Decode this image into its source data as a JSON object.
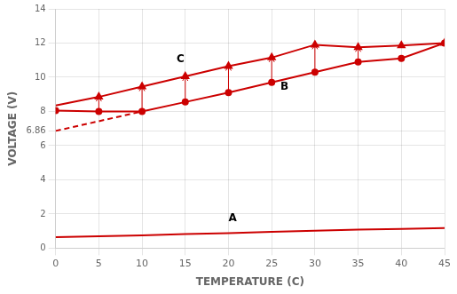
{
  "chart_data": {
    "type": "line",
    "xlabel": "TEMPERATURE (C)",
    "ylabel": "VOLTAGE (V)",
    "xlim": [
      0,
      45
    ],
    "ylim": [
      0,
      14
    ],
    "xticks": [
      0,
      5,
      10,
      15,
      20,
      25,
      30,
      35,
      40,
      45
    ],
    "yticks": [
      0,
      2,
      4,
      6,
      6.86,
      8,
      10,
      12,
      14
    ],
    "grid": true,
    "color": "#cc0000",
    "series": [
      {
        "x": [
          0,
          5,
          10,
          15,
          20,
          25,
          30,
          35,
          40,
          45
        ],
        "values": [
          0.65,
          0.7,
          0.75,
          0.82,
          0.88,
          0.95,
          1.02,
          1.08,
          1.13,
          1.18
        ]
      },
      {
        "x": [
          0,
          5,
          10,
          15,
          20,
          25,
          30,
          35,
          40,
          45
        ],
        "values": [
          8.05,
          8.0,
          8.0,
          8.55,
          9.1,
          9.7,
          10.3,
          10.9,
          11.1,
          12.0
        ],
        "marker": "circle"
      },
      {
        "x": [
          0,
          5,
          10,
          15,
          20,
          25,
          30,
          35,
          40,
          45
        ],
        "values": [
          8.35,
          8.85,
          9.45,
          10.05,
          10.65,
          11.15,
          11.9,
          11.75,
          11.85,
          12.0
        ]
      },
      {
        "x": [
          5,
          10,
          15,
          20,
          25,
          30,
          35,
          40,
          45
        ],
        "values": [
          8.85,
          9.45,
          10.05,
          10.65,
          11.15,
          11.9,
          11.75,
          11.85,
          12.0
        ],
        "type": "scatter",
        "marker": "triangle"
      },
      {
        "x": [
          0,
          10
        ],
        "values": [
          6.86,
          8.0
        ],
        "line_style": "dashed"
      }
    ],
    "arrows": [
      {
        "x": 5,
        "y_bottom": 8.0,
        "y_top": 8.85
      },
      {
        "x": 10,
        "y_bottom": 8.0,
        "y_top": 9.45
      },
      {
        "x": 15,
        "y_bottom": 8.55,
        "y_top": 10.05
      },
      {
        "x": 20,
        "y_bottom": 9.1,
        "y_top": 10.65
      },
      {
        "x": 25,
        "y_bottom": 9.7,
        "y_top": 11.15
      },
      {
        "x": 30,
        "y_bottom": 10.3,
        "y_top": 11.9
      },
      {
        "x": 35,
        "y_bottom": 10.9,
        "y_top": 11.75
      }
    ],
    "annotations": [
      {
        "text": "A",
        "x": 20,
        "y": 1.45
      },
      {
        "text": "B",
        "x": 26,
        "y": 9.1
      },
      {
        "text": "C",
        "x": 14,
        "y": 10.75
      }
    ]
  }
}
